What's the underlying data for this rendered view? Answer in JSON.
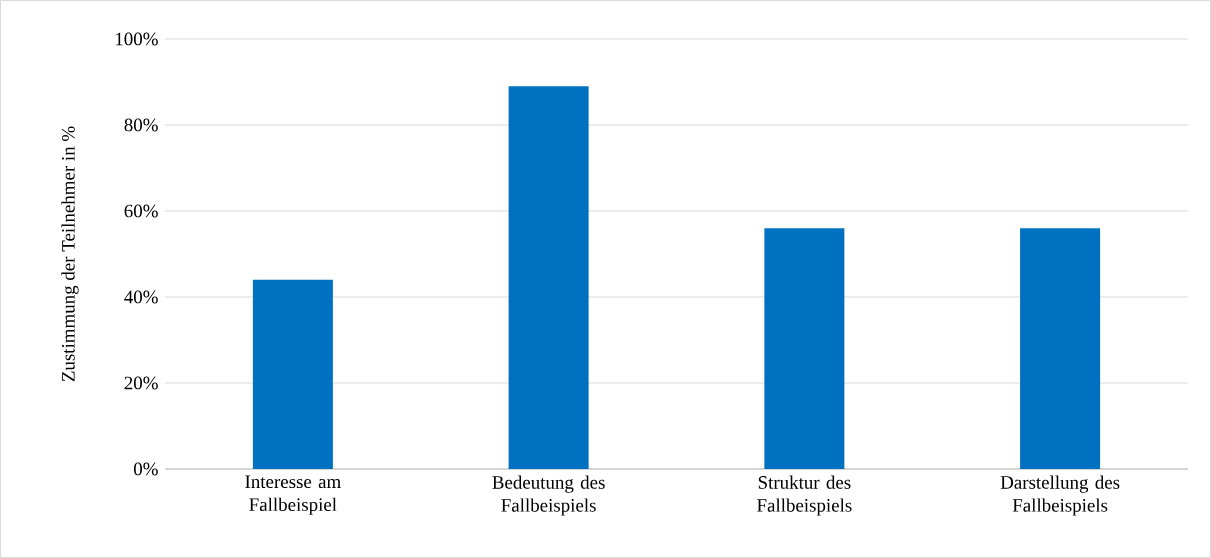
{
  "chart_data": {
    "type": "bar",
    "ylabel": "Zustimmung der Teilnehmer in %",
    "categories": [
      "Interesse am Fallbeispiel",
      "Bedeutung des Fallbeispiels",
      "Struktur des Fallbeispiels",
      "Darstellung des Fallbeispiels"
    ],
    "values": [
      44,
      89,
      56,
      56
    ],
    "color": "#0070c0",
    "ylim": [
      0,
      100
    ],
    "yticks": [
      {
        "value": 0,
        "label": "0%"
      },
      {
        "value": 20,
        "label": "20%"
      },
      {
        "value": 40,
        "label": "40%"
      },
      {
        "value": 60,
        "label": "60%"
      },
      {
        "value": 80,
        "label": "80%"
      },
      {
        "value": 100,
        "label": "100%"
      }
    ],
    "grid": "y"
  }
}
